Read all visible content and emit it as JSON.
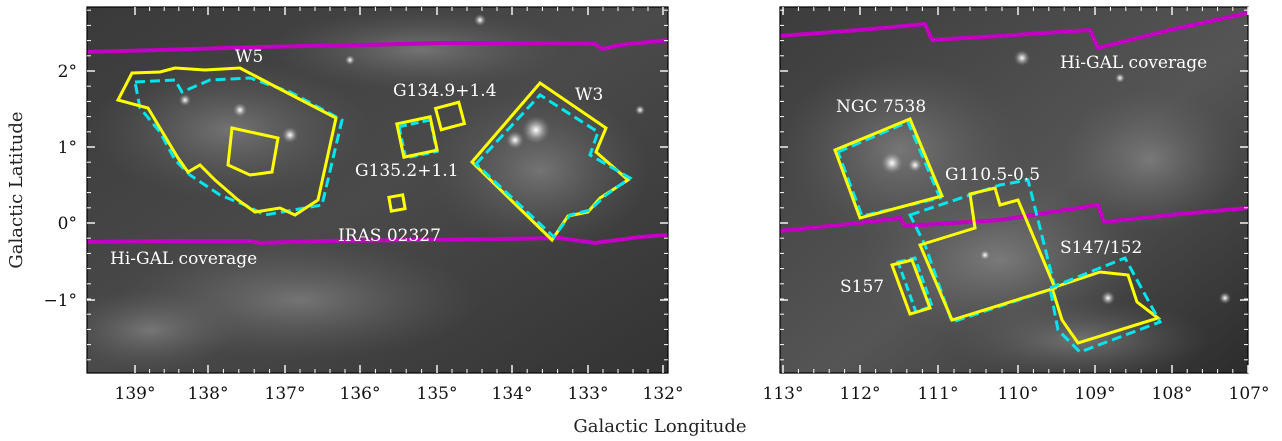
{
  "axes": {
    "xlabel": "Galactic Longitude",
    "ylabel": "Galactic Latitude"
  },
  "colors": {
    "hi_gal": "#c400c4",
    "region_solid": "#ffff00",
    "region_dashed": "#00e5ee",
    "background_dark": "#2a2a2a"
  },
  "panels": [
    {
      "x_ticks": [
        "139°",
        "138°",
        "137°",
        "136°",
        "135°",
        "134°",
        "133°",
        "132°"
      ],
      "y_ticks": [
        "2°",
        "1°",
        "0°",
        "−1°"
      ],
      "labels": {
        "w5": "W5",
        "w3": "W3",
        "g134": "G134.9+1.4",
        "g135": "G135.2+1.1",
        "iras": "IRAS 02327",
        "higal": "Hi-GAL coverage"
      }
    },
    {
      "x_ticks": [
        "113°",
        "112°",
        "111°",
        "110°",
        "109°",
        "108°",
        "107°"
      ],
      "labels": {
        "ngc": "NGC 7538",
        "g110": "G110.5-0.5",
        "s157": "S157",
        "s147": "S147/152",
        "higal": "Hi-GAL coverage"
      }
    }
  ]
}
